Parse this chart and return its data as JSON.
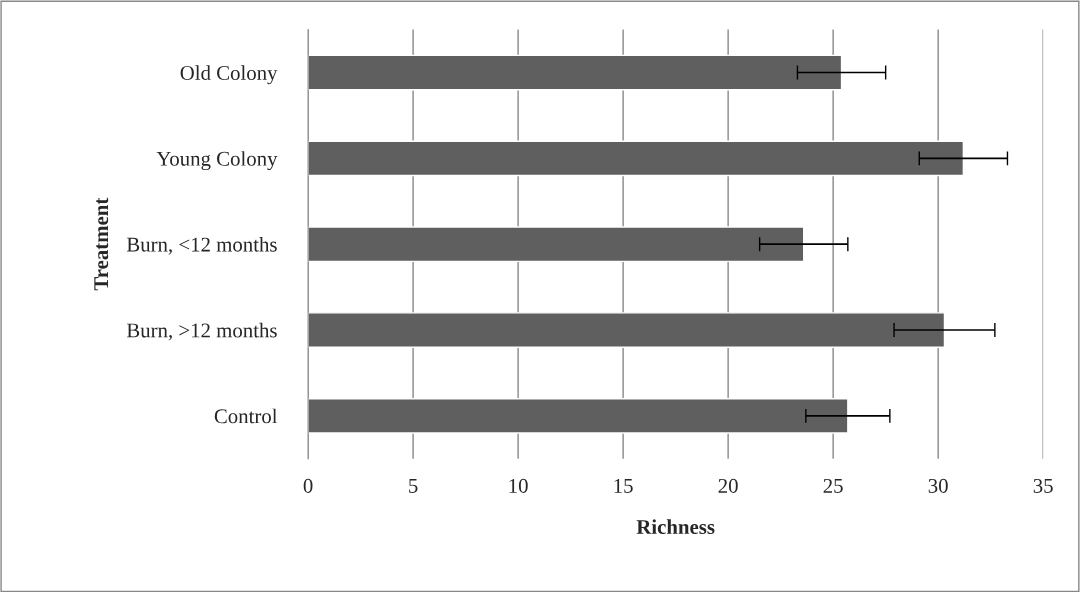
{
  "chart_data": {
    "type": "bar",
    "orientation": "horizontal",
    "xlabel": "Richness",
    "ylabel": "Treatment",
    "categories": [
      "Old Colony",
      "Young Colony",
      "Burn, <12 months",
      "Burn, >12 months",
      "Control"
    ],
    "values": [
      25.4,
      31.2,
      23.6,
      30.3,
      25.7
    ],
    "errors": [
      2.1,
      2.1,
      2.1,
      2.4,
      2.0
    ],
    "color": "#5f5f5f",
    "xlim": [
      0,
      35
    ],
    "xticks": [
      0,
      5,
      10,
      15,
      20,
      25,
      30,
      35
    ],
    "grid": "x"
  }
}
